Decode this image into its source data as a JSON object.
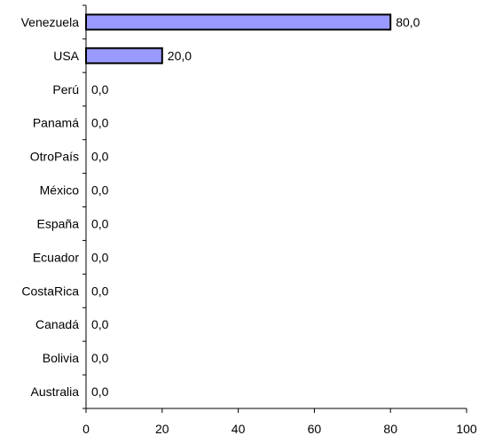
{
  "chart_data": {
    "type": "bar",
    "orientation": "horizontal",
    "categories": [
      "Venezuela",
      "USA",
      "Perú",
      "Panamá",
      "OtroPaís",
      "México",
      "España",
      "Ecuador",
      "CostaRica",
      "Canadá",
      "Bolivia",
      "Australia"
    ],
    "values": [
      80,
      20,
      0,
      0,
      0,
      0,
      0,
      0,
      0,
      0,
      0,
      0
    ],
    "value_labels": [
      "80,0",
      "20,0",
      "0,0",
      "0,0",
      "0,0",
      "0,0",
      "0,0",
      "0,0",
      "0,0",
      "0,0",
      "0,0",
      "0,0"
    ],
    "xlim": [
      0,
      100
    ],
    "x_ticks": [
      0,
      20,
      40,
      60,
      80,
      100
    ],
    "title": "",
    "xlabel": "",
    "ylabel": "",
    "grid": false,
    "legend": "none",
    "bar_color": "#9999ff",
    "bar_edge_color": "#000000"
  }
}
